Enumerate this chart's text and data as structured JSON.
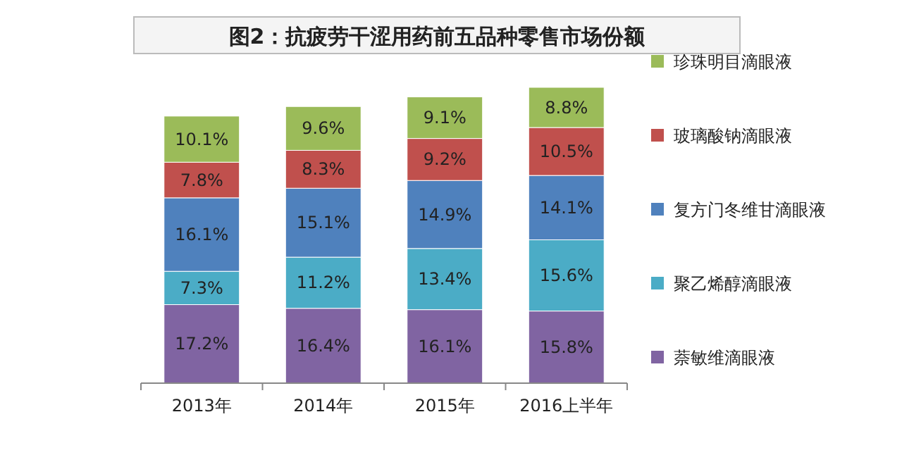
{
  "chart_data": {
    "type": "bar",
    "stacked": true,
    "title": "图2：抗疲劳干涩用药前五品种零售市场份额",
    "categories": [
      "2013年",
      "2014年",
      "2015年",
      "2016上半年"
    ],
    "series": [
      {
        "name": "萘敏维滴眼液",
        "color": "#8064a2",
        "values": [
          17.2,
          16.4,
          16.1,
          15.8
        ],
        "value_labels": [
          "17.2%",
          "16.4%",
          "16.1%",
          "15.8%"
        ]
      },
      {
        "name": "聚乙烯醇滴眼液",
        "color": "#4bacc6",
        "values": [
          7.3,
          11.2,
          13.4,
          15.6
        ],
        "value_labels": [
          "7.3%",
          "11.2%",
          "13.4%",
          "15.6%"
        ]
      },
      {
        "name": "复方门冬维甘滴眼液",
        "color": "#4f81bd",
        "values": [
          16.1,
          15.1,
          14.9,
          14.1
        ],
        "value_labels": [
          "16.1%",
          "15.1%",
          "14.9%",
          "14.1%"
        ]
      },
      {
        "name": "玻璃酸钠滴眼液",
        "color": "#c0504d",
        "values": [
          7.8,
          8.3,
          9.2,
          10.5
        ],
        "value_labels": [
          "7.8%",
          "8.3%",
          "9.2%",
          "10.5%"
        ]
      },
      {
        "name": "珍珠明目滴眼液",
        "color": "#9bbb59",
        "values": [
          10.1,
          9.6,
          9.1,
          8.8
        ],
        "value_labels": [
          "10.1%",
          "9.6%",
          "9.1%",
          "8.8%"
        ]
      }
    ],
    "legend": "right"
  }
}
